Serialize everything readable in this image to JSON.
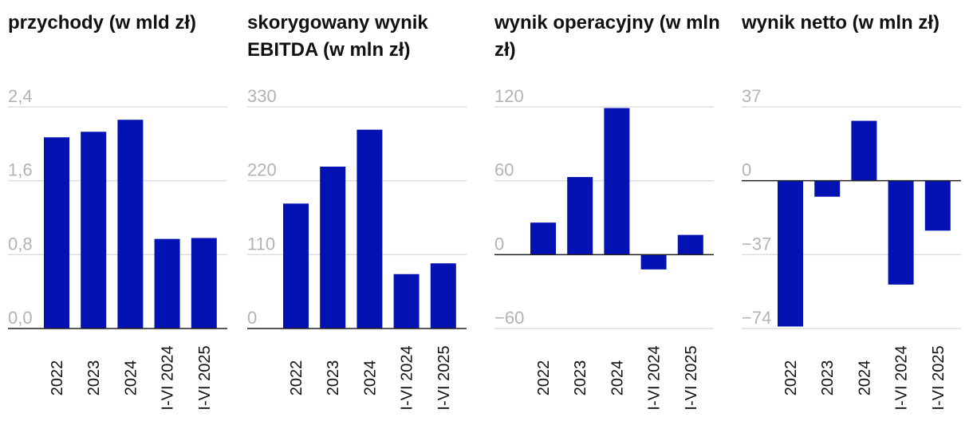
{
  "colors": {
    "bar": "#0412b4",
    "grid": "#dddddd",
    "axis": "#222222",
    "tick_text": "#b3b3b3",
    "text": "#111111"
  },
  "chart_data": [
    {
      "type": "bar",
      "title": "przychody (w mld zł)",
      "categories": [
        "2022",
        "2023",
        "2024",
        "I-VI 2024",
        "I-VI 2025"
      ],
      "values": [
        2.07,
        2.13,
        2.26,
        0.97,
        0.98
      ],
      "yticks": [
        0.0,
        0.8,
        1.6,
        2.4
      ],
      "ytick_labels": [
        "0,0",
        "0,8",
        "1,6",
        "2,4"
      ],
      "ylim": [
        0,
        2.4
      ],
      "grid": true
    },
    {
      "type": "bar",
      "title": "skorygowany wynik EBITDA (w mln zł)",
      "categories": [
        "2022",
        "2023",
        "2024",
        "I-VI 2024",
        "I-VI 2025"
      ],
      "values": [
        186,
        241,
        296,
        81,
        97
      ],
      "yticks": [
        0,
        110,
        220,
        330
      ],
      "ytick_labels": [
        "0",
        "110",
        "220",
        "330"
      ],
      "ylim": [
        0,
        330
      ],
      "grid": true
    },
    {
      "type": "bar",
      "title": "wynik operacyjny (w mln zł)",
      "categories": [
        "2022",
        "2023",
        "2024",
        "I-VI 2024",
        "I-VI 2025"
      ],
      "values": [
        26,
        63,
        119,
        -12,
        16
      ],
      "yticks": [
        -60,
        0,
        60,
        120
      ],
      "ytick_labels": [
        "−60",
        "0",
        "60",
        "120"
      ],
      "ylim": [
        -60,
        120
      ],
      "grid": true
    },
    {
      "type": "bar",
      "title": "wynik netto (w mln zł)",
      "categories": [
        "2022",
        "2023",
        "2024",
        "I-VI 2024",
        "I-VI 2025"
      ],
      "values": [
        -73,
        -8,
        30,
        -52,
        -25
      ],
      "yticks": [
        -74,
        -37,
        0,
        37
      ],
      "ytick_labels": [
        "−74",
        "−37",
        "0",
        "37"
      ],
      "ylim": [
        -74,
        37
      ],
      "grid": true
    }
  ]
}
